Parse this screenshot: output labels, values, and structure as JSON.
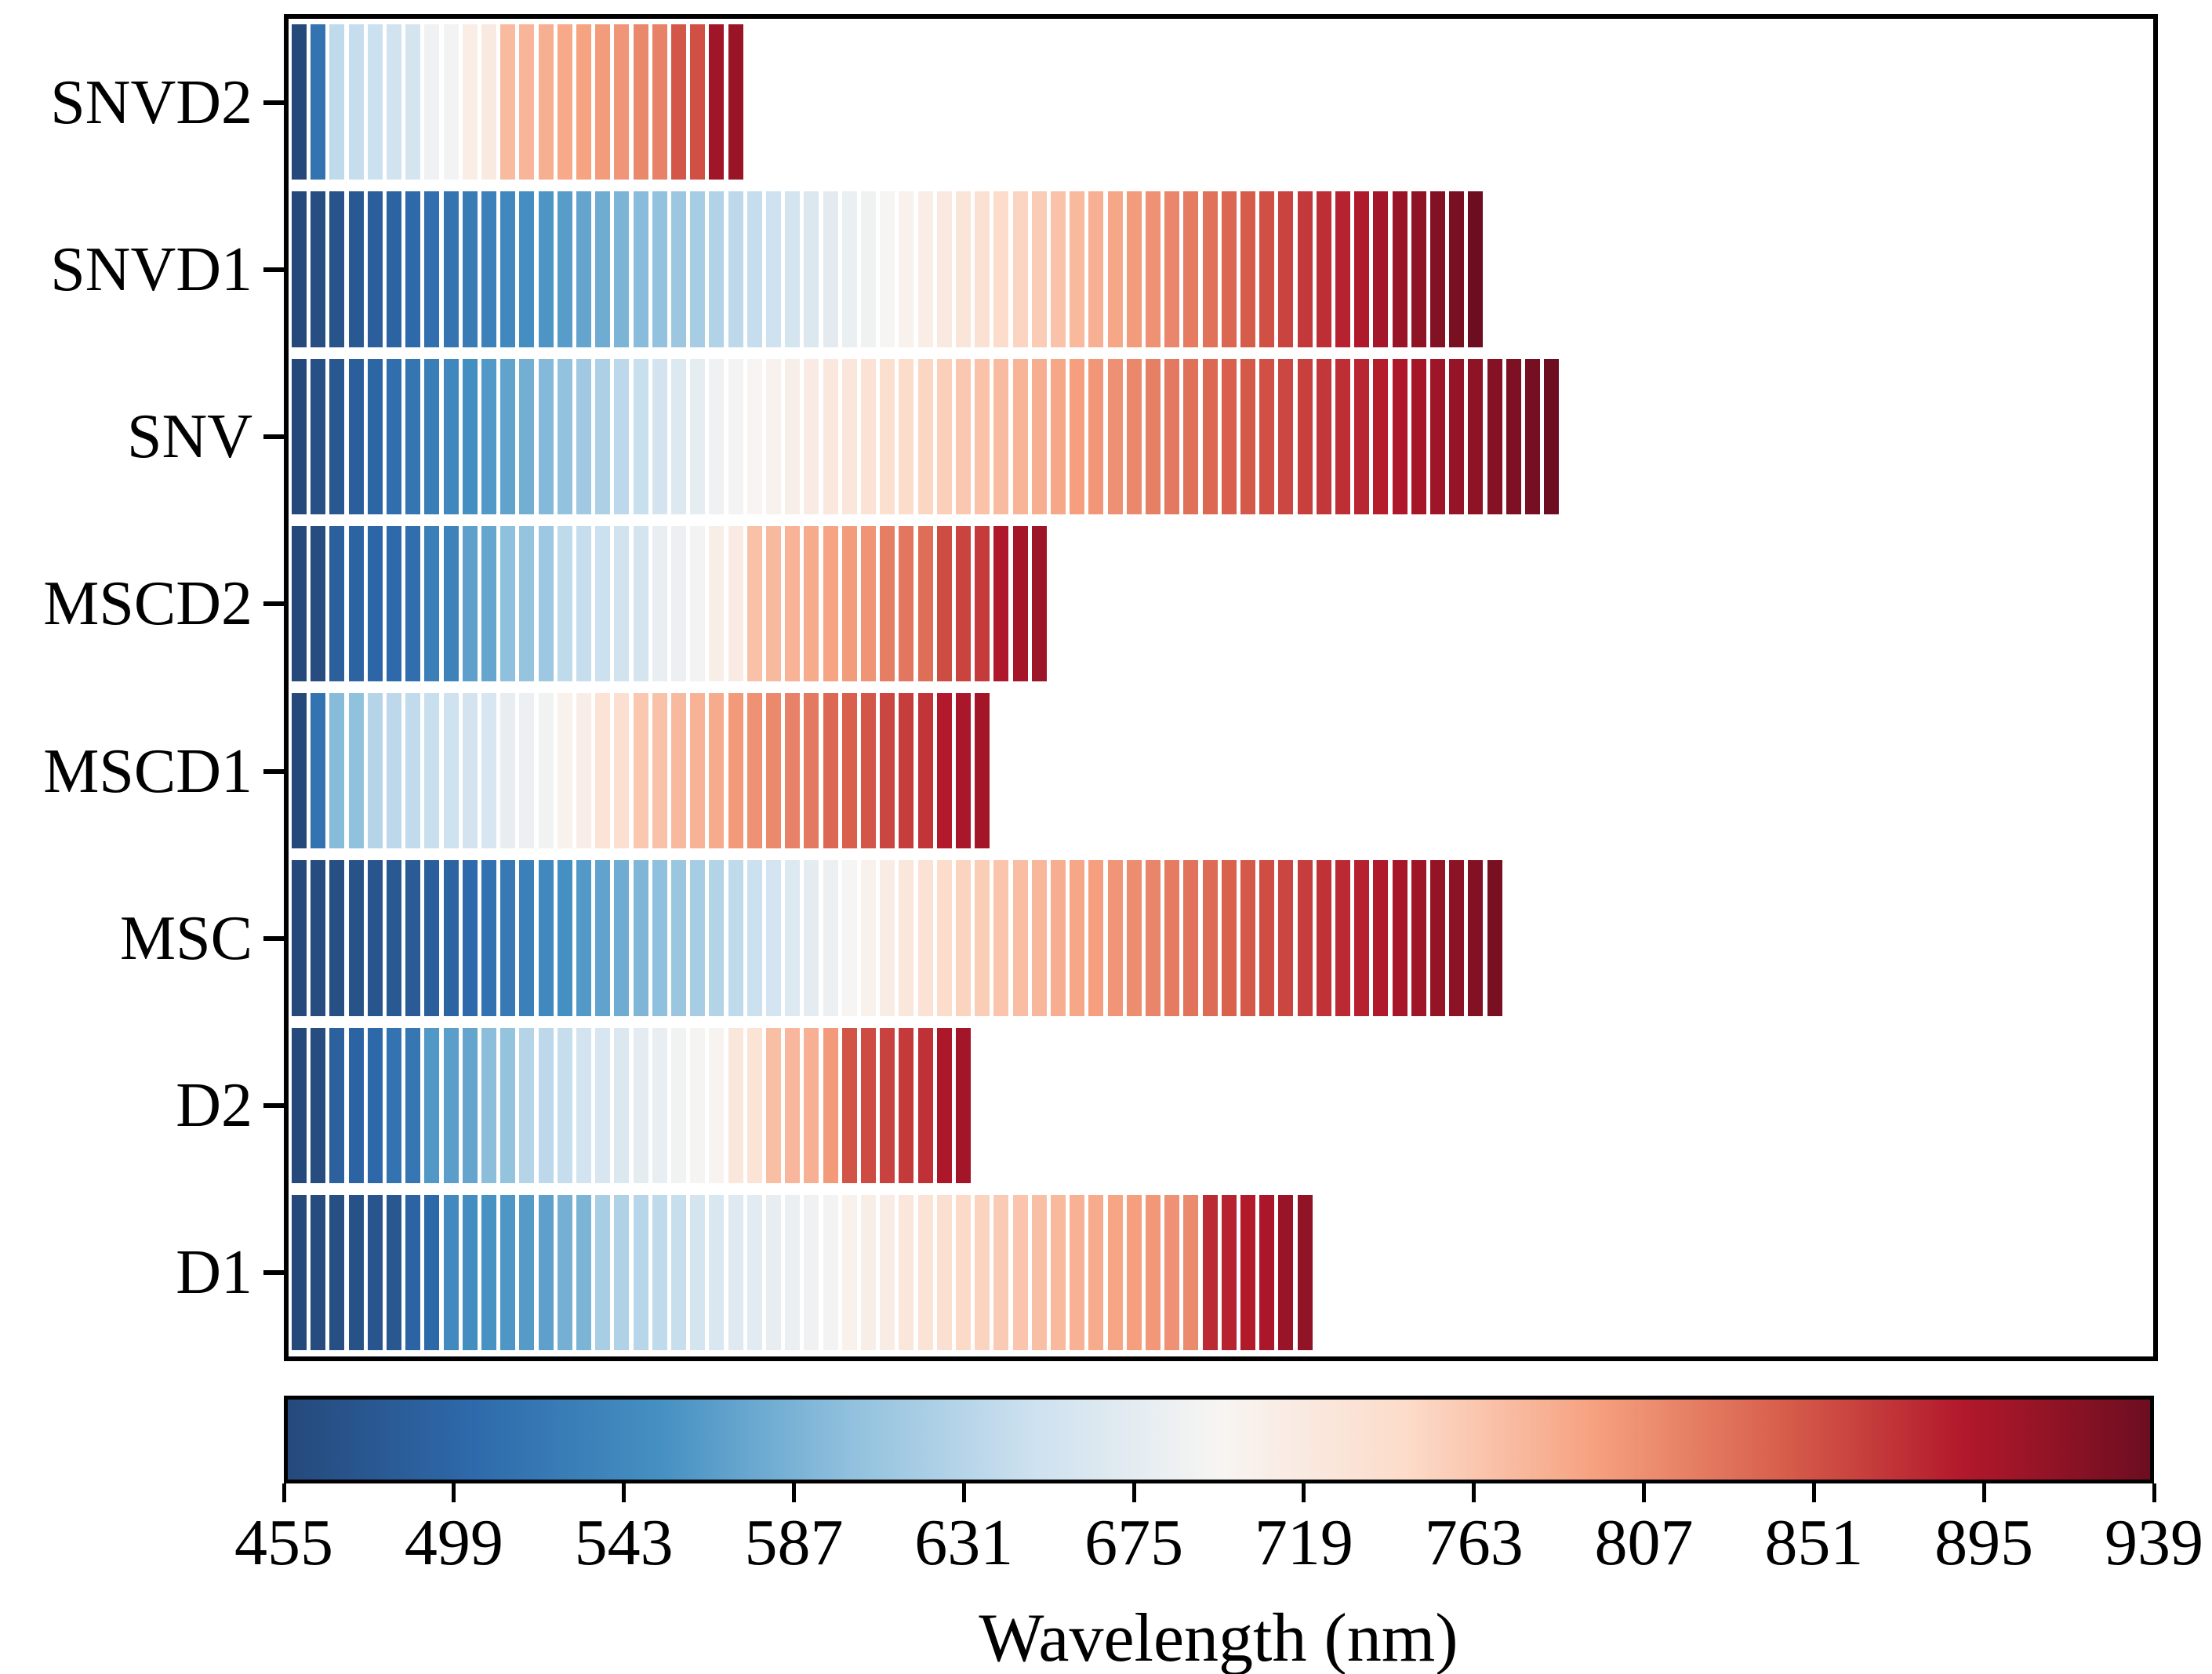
{
  "chart_data": {
    "type": "heatmap",
    "title": "",
    "xlabel": "Wavelength (nm)",
    "ylabel": "",
    "x_axis": {
      "min": 455,
      "max": 939,
      "ticks": [
        455,
        499,
        543,
        587,
        631,
        675,
        719,
        763,
        807,
        851,
        895,
        939
      ]
    },
    "legend_position": "colorbar-bottom",
    "grid": false,
    "colormap": {
      "name": "RdBu_r",
      "stops": [
        {
          "t": 0.0,
          "color": "#25497b"
        },
        {
          "t": 0.1,
          "color": "#2e6aab"
        },
        {
          "t": 0.2,
          "color": "#4590c2"
        },
        {
          "t": 0.3,
          "color": "#8fc0dd"
        },
        {
          "t": 0.4,
          "color": "#cde1ef"
        },
        {
          "t": 0.5,
          "color": "#f7f5f3"
        },
        {
          "t": 0.6,
          "color": "#fcdcca"
        },
        {
          "t": 0.7,
          "color": "#f6a281"
        },
        {
          "t": 0.8,
          "color": "#d8604c"
        },
        {
          "t": 0.9,
          "color": "#b2182b"
        },
        {
          "t": 1.0,
          "color": "#6c0e20"
        }
      ]
    },
    "rows": [
      {
        "label": "SNVD2",
        "wavelengths": [
          455,
          515,
          638,
          643,
          648,
          653,
          658,
          688,
          693,
          713,
          718,
          773,
          778,
          783,
          788,
          793,
          798,
          803,
          813,
          818,
          848,
          853,
          903,
          908
        ]
      },
      {
        "label": "SNVD1",
        "wavelengths": [
          455,
          463,
          471,
          478,
          486,
          494,
          502,
          510,
          517,
          525,
          533,
          541,
          549,
          557,
          564,
          572,
          580,
          588,
          596,
          603,
          611,
          619,
          627,
          635,
          642,
          650,
          658,
          666,
          674,
          682,
          689,
          697,
          705,
          712,
          720,
          728,
          735,
          743,
          751,
          759,
          767,
          775,
          782,
          790,
          798,
          806,
          814,
          822,
          829,
          837,
          845,
          853,
          861,
          869,
          876,
          884,
          892,
          900,
          908,
          916,
          923,
          931,
          939
        ]
      },
      {
        "label": "SNV",
        "wavelengths": [
          455,
          466,
          476,
          487,
          497,
          508,
          519,
          529,
          540,
          550,
          561,
          571,
          582,
          593,
          603,
          614,
          624,
          635,
          645,
          656,
          667,
          677,
          688,
          693,
          699,
          704,
          710,
          716,
          722,
          727,
          733,
          739,
          744,
          750,
          756,
          762,
          767,
          773,
          779,
          784,
          790,
          796,
          802,
          807,
          813,
          819,
          824,
          830,
          836,
          842,
          847,
          853,
          859,
          864,
          870,
          876,
          882,
          887,
          893,
          899,
          904,
          910,
          916,
          922,
          927,
          933,
          939
        ]
      },
      {
        "label": "MSCD2",
        "wavelengths": [
          455,
          460,
          488,
          493,
          498,
          503,
          508,
          530,
          535,
          568,
          573,
          600,
          606,
          612,
          638,
          643,
          648,
          653,
          658,
          680,
          686,
          692,
          710,
          716,
          768,
          774,
          780,
          786,
          792,
          798,
          804,
          820,
          826,
          832,
          855,
          861,
          867,
          893,
          899,
          905
        ]
      },
      {
        "label": "MSCD1",
        "wavelengths": [
          455,
          515,
          595,
          601,
          630,
          635,
          640,
          645,
          650,
          655,
          660,
          678,
          684,
          690,
          705,
          711,
          731,
          737,
          762,
          768,
          774,
          780,
          786,
          800,
          806,
          812,
          818,
          824,
          836,
          842,
          848,
          860,
          866,
          872,
          890,
          896,
          902
        ]
      },
      {
        "label": "MSC",
        "wavelengths": [
          455,
          460,
          464,
          469,
          473,
          478,
          482,
          487,
          494,
          504,
          513,
          523,
          532,
          542,
          552,
          561,
          571,
          580,
          590,
          600,
          609,
          619,
          628,
          638,
          648,
          657,
          667,
          676,
          686,
          696,
          705,
          715,
          724,
          734,
          744,
          752,
          758,
          765,
          771,
          777,
          784,
          790,
          796,
          803,
          809,
          815,
          822,
          828,
          834,
          841,
          847,
          854,
          860,
          866,
          873,
          879,
          885,
          892,
          898,
          904,
          911,
          917,
          923,
          930
        ]
      },
      {
        "label": "D2",
        "wavelengths": [
          455,
          460,
          490,
          495,
          500,
          515,
          520,
          560,
          566,
          572,
          598,
          604,
          630,
          636,
          642,
          655,
          660,
          665,
          675,
          680,
          690,
          695,
          700,
          725,
          731,
          770,
          776,
          782,
          800,
          850,
          856,
          862,
          868,
          874,
          895,
          901
        ]
      },
      {
        "label": "D1",
        "wavelengths": [
          455,
          459,
          464,
          468,
          473,
          477,
          495,
          500,
          543,
          548,
          553,
          558,
          563,
          568,
          583,
          588,
          620,
          626,
          632,
          638,
          644,
          658,
          663,
          668,
          673,
          678,
          683,
          688,
          693,
          705,
          710,
          715,
          727,
          732,
          737,
          747,
          752,
          760,
          765,
          770,
          775,
          781,
          786,
          791,
          796,
          801,
          806,
          811,
          878,
          884,
          890,
          896,
          908,
          914
        ]
      }
    ]
  }
}
